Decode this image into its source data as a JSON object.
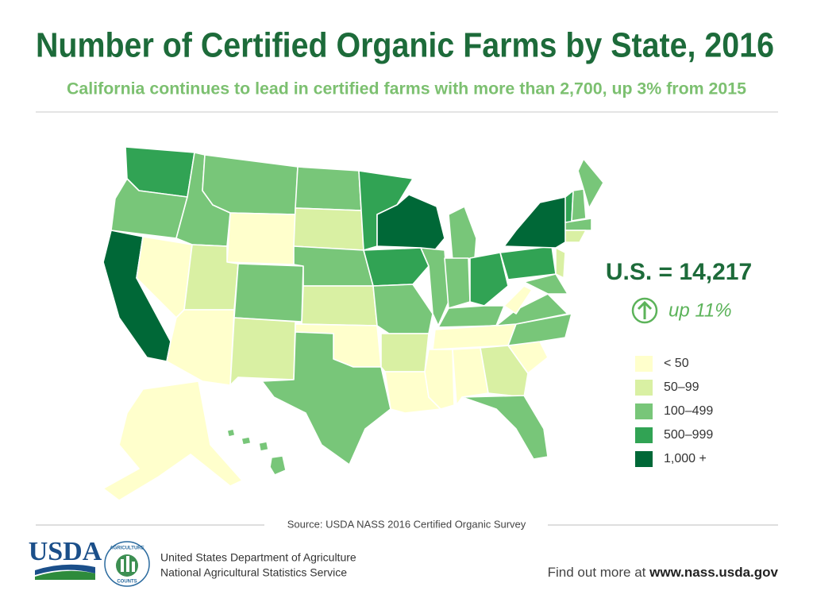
{
  "header": {
    "title": "Number of Certified Organic Farms by State, 2016",
    "subtitle": "California continues to lead in certified farms with more than 2,700, up 3% from 2015"
  },
  "summary": {
    "total": "U.S. = 14,217",
    "change": "up 11%"
  },
  "legend": [
    {
      "label": "< 50",
      "color": "#ffffcc"
    },
    {
      "label": "50–99",
      "color": "#d9f0a3"
    },
    {
      "label": "100–499",
      "color": "#78c679"
    },
    {
      "label": "500–999",
      "color": "#31a354"
    },
    {
      "label": "1,000 +",
      "color": "#006837"
    }
  ],
  "footer": {
    "source": "Source: USDA NASS 2016 Certified Organic Survey",
    "logo": "USDA",
    "badge_top": "AGRICULTURE",
    "badge_bottom": "COUNTS",
    "agency": [
      "United States Department of Agriculture",
      "National Agricultural Statistics Service"
    ],
    "link_prefix": "Find out more at",
    "link": "www.nass.usda.gov"
  }
}
